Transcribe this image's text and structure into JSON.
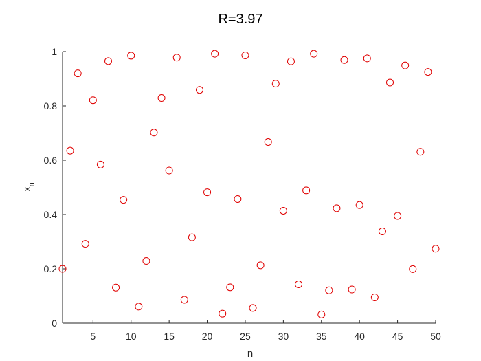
{
  "chart_data": {
    "type": "scatter",
    "title": "R=3.97",
    "xlabel": "n",
    "ylabel": "x",
    "ylabel_subscript": "n",
    "xlim": [
      1,
      50
    ],
    "ylim": [
      0,
      1
    ],
    "xticks": [
      5,
      10,
      15,
      20,
      25,
      30,
      35,
      40,
      45,
      50
    ],
    "yticks": [
      0,
      0.2,
      0.4,
      0.6,
      0.8,
      1
    ],
    "ytick_labels": [
      "0",
      "0.2",
      "0.4",
      "0.6",
      "0.8",
      "1"
    ],
    "grid": false,
    "marker": "circle-open",
    "color": "#e00000",
    "x": [
      1,
      2,
      3,
      4,
      5,
      6,
      7,
      8,
      9,
      10,
      11,
      12,
      13,
      14,
      15,
      16,
      17,
      18,
      19,
      20,
      21,
      22,
      23,
      24,
      25,
      26,
      27,
      28,
      29,
      30,
      31,
      32,
      33,
      34,
      35,
      36,
      37,
      38,
      39,
      40,
      41,
      42,
      43,
      44,
      45,
      46,
      47,
      48,
      49,
      50
    ],
    "y": [
      0.2,
      0.635,
      0.92,
      0.292,
      0.821,
      0.584,
      0.965,
      0.131,
      0.454,
      0.985,
      0.061,
      0.229,
      0.702,
      0.829,
      0.562,
      0.978,
      0.086,
      0.316,
      0.859,
      0.482,
      0.992,
      0.035,
      0.132,
      0.457,
      0.986,
      0.056,
      0.213,
      0.667,
      0.882,
      0.414,
      0.964,
      0.143,
      0.489,
      0.992,
      0.032,
      0.121,
      0.423,
      0.969,
      0.124,
      0.435,
      0.975,
      0.095,
      0.338,
      0.886,
      0.395,
      0.949,
      0.199,
      0.631,
      0.925,
      0.274
    ]
  }
}
